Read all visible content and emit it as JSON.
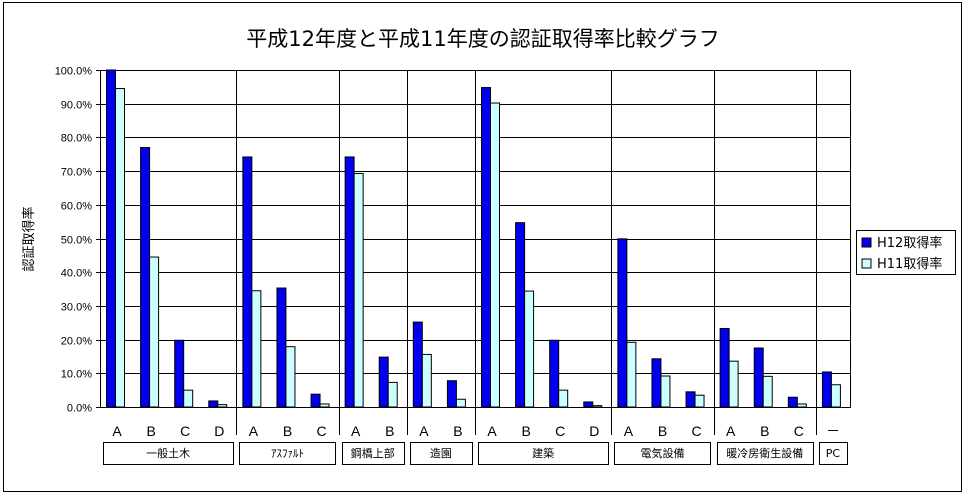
{
  "chart_data": {
    "type": "bar",
    "title": "平成12年度と平成11年度の認証取得率比較グラフ",
    "ylabel": "認証取得率",
    "xlabel": "",
    "ylim": [
      0,
      100
    ],
    "y_ticks": [
      "0.0%",
      "10.0%",
      "20.0%",
      "30.0%",
      "40.0%",
      "50.0%",
      "60.0%",
      "70.0%",
      "80.0%",
      "90.0%",
      "100.0%"
    ],
    "grid": "horizontal",
    "legend_position": "right",
    "colors": {
      "H12": "#0000ee",
      "H11": "#ccffff",
      "outline": "#000000"
    },
    "groups": [
      {
        "label": "一般土木",
        "count": 4
      },
      {
        "label": "ｱｽﾌｧﾙﾄ",
        "count": 3
      },
      {
        "label": "鋼橋上部",
        "count": 2
      },
      {
        "label": "造園",
        "count": 2
      },
      {
        "label": "建築",
        "count": 4
      },
      {
        "label": "電気設備",
        "count": 3
      },
      {
        "label": "暖冷房衛生設備",
        "count": 3
      },
      {
        "label": "PC",
        "count": 1
      }
    ],
    "categories": [
      "A",
      "B",
      "C",
      "D",
      "A",
      "B",
      "C",
      "A",
      "B",
      "A",
      "B",
      "A",
      "B",
      "C",
      "D",
      "A",
      "B",
      "C",
      "A",
      "B",
      "C",
      "－"
    ],
    "series": [
      {
        "name": "H12取得率",
        "values": [
          100.0,
          77.0,
          19.8,
          1.8,
          74.2,
          35.3,
          3.8,
          74.2,
          14.8,
          25.2,
          7.8,
          94.8,
          54.7,
          19.8,
          1.5,
          49.9,
          14.3,
          4.5,
          23.3,
          17.5,
          2.9,
          10.4
        ]
      },
      {
        "name": "H11取得率",
        "values": [
          94.5,
          44.5,
          5.0,
          0.7,
          34.5,
          17.9,
          0.9,
          69.3,
          7.3,
          15.6,
          2.3,
          90.2,
          34.4,
          5.0,
          0.4,
          19.2,
          9.2,
          3.5,
          13.6,
          9.1,
          0.9,
          6.6
        ]
      }
    ]
  }
}
